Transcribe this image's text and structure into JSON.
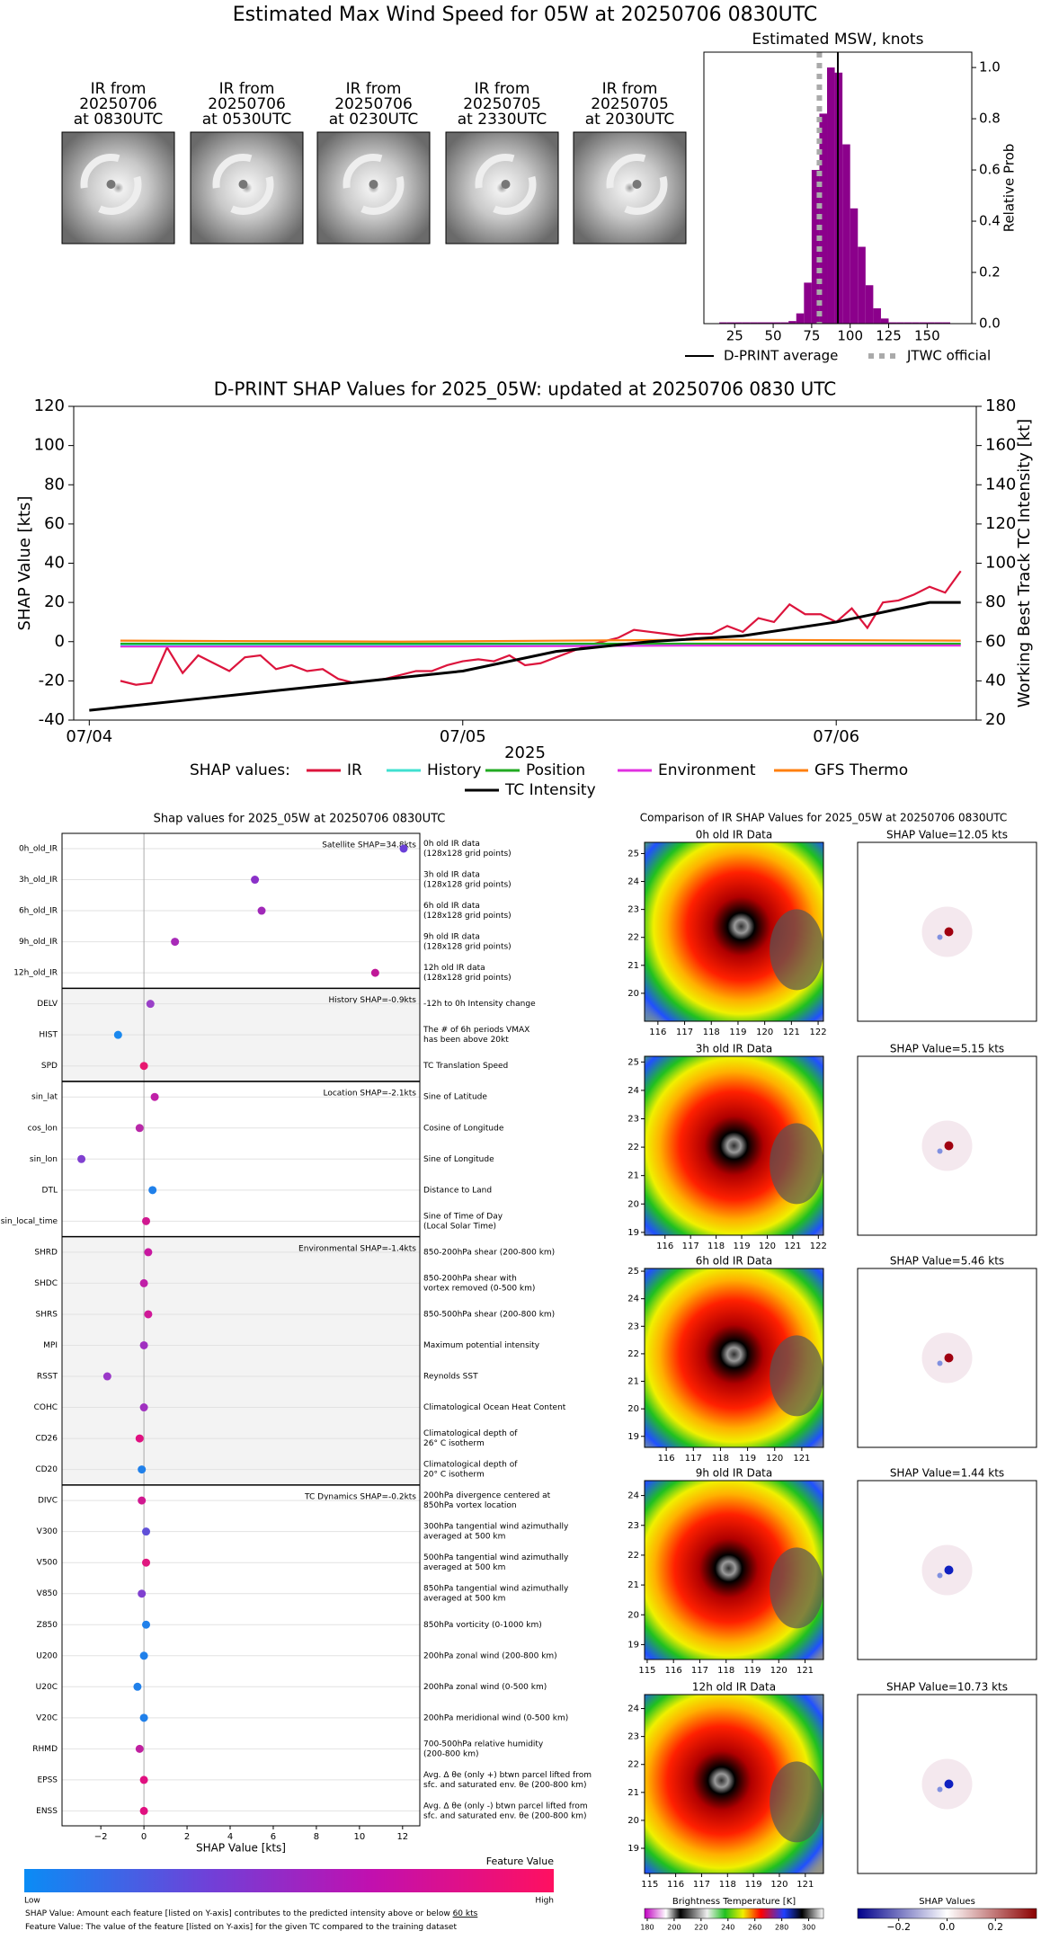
{
  "title": "Estimated Max Wind Speed for 05W at 20250706 0830UTC",
  "thumbnails": [
    {
      "label": [
        "IR from",
        "20250706",
        "at 0830UTC"
      ]
    },
    {
      "label": [
        "IR from",
        "20250706",
        "at 0530UTC"
      ]
    },
    {
      "label": [
        "IR from",
        "20250706",
        "at 0230UTC"
      ]
    },
    {
      "label": [
        "IR from",
        "20250705",
        "at 2330UTC"
      ]
    },
    {
      "label": [
        "IR from",
        "20250705",
        "at 2030UTC"
      ]
    }
  ],
  "chart_data": [
    {
      "type": "histogram",
      "title": "Estimated MSW, knots",
      "color": "#8b008b",
      "bins": [
        15,
        20,
        25,
        30,
        35,
        40,
        45,
        50,
        55,
        60,
        65,
        70,
        75,
        80,
        85,
        90,
        95,
        100,
        105,
        110,
        115,
        120,
        125,
        130,
        135,
        140,
        145,
        150,
        155,
        160,
        165
      ],
      "values": [
        0.005,
        0.005,
        0.005,
        0.005,
        0.005,
        0.005,
        0.005,
        0.005,
        0.005,
        0.01,
        0.04,
        0.16,
        0.6,
        0.82,
        1.0,
        0.98,
        0.7,
        0.45,
        0.3,
        0.15,
        0.06,
        0.02,
        0.005,
        0.005,
        0.005,
        0.005,
        0.005,
        0.005,
        0.005,
        0.005
      ],
      "xlim": [
        5,
        179
      ],
      "xticks": [
        25,
        50,
        75,
        100,
        125,
        150
      ],
      "ylim": [
        0,
        1.06
      ],
      "yticks": [
        {
          "value": 0,
          "label": "0.0"
        },
        0.2,
        0.4,
        0.6,
        0.8,
        {
          "value": 1,
          "label": "1.0"
        }
      ],
      "y_label": "Relative Prob",
      "y_axis_side": "right",
      "lines": [
        {
          "name": "D-PRINT average",
          "value": 92,
          "color": "#000000",
          "style": "solid"
        },
        {
          "name": "JTWC official",
          "value": 80,
          "color": "#aaaaaa",
          "style": "dotted"
        }
      ]
    },
    {
      "type": "line",
      "title": "D-PRINT SHAP Values for 2025_05W: updated at 20250706 0830 UTC",
      "x_label": "2025",
      "y_label": "SHAP Value [kts]",
      "y2_label": "Working Best Track TC Intensity [kt]",
      "xlim": [
        -1,
        57
      ],
      "xticks": [
        {
          "value": 0,
          "label": "07/04"
        },
        {
          "value": 24,
          "label": "07/05"
        },
        {
          "value": 48,
          "label": "07/06"
        }
      ],
      "ylim": [
        -40,
        120
      ],
      "yticks": [
        -40,
        -20,
        0,
        20,
        40,
        60,
        80,
        100,
        120
      ],
      "y2lim": [
        20,
        180
      ],
      "y2ticks": [
        20,
        40,
        60,
        80,
        100,
        120,
        140,
        160,
        180
      ],
      "legend_title": "SHAP values:",
      "series": [
        {
          "name": "IR",
          "color": "#dc143c",
          "x": [
            2,
            3,
            4,
            5,
            6,
            7,
            8,
            9,
            10,
            11,
            12,
            13,
            14,
            15,
            16,
            17,
            18,
            19,
            20,
            21,
            22,
            23,
            24,
            25,
            26,
            27,
            28,
            29,
            30,
            31,
            32,
            33,
            34,
            35,
            36,
            37,
            38,
            39,
            40,
            41,
            42,
            43,
            44,
            45,
            46,
            47,
            48,
            49,
            50,
            51,
            52,
            53,
            54,
            55,
            56
          ],
          "values": [
            -20,
            -22,
            -21,
            -3,
            -16,
            -7,
            -11,
            -15,
            -8,
            -7,
            -14,
            -12,
            -15,
            -14,
            -19,
            -21,
            -20,
            -19,
            -17,
            -15,
            -15,
            -12,
            -10,
            -9,
            -10,
            -7,
            -12,
            -11,
            -8,
            -5,
            -2,
            0,
            2,
            6,
            5,
            4,
            3,
            4,
            4,
            8,
            5,
            12,
            10,
            19,
            14,
            14,
            10,
            17,
            7,
            20,
            21,
            24,
            28,
            25,
            36
          ]
        },
        {
          "name": "History",
          "color": "#40e0d0",
          "x": [
            2,
            20,
            40,
            56
          ],
          "values": [
            -2,
            -2,
            -1.5,
            -1.5
          ]
        },
        {
          "name": "Position",
          "color": "#22aa22",
          "x": [
            2,
            56
          ],
          "values": [
            -1,
            -1
          ]
        },
        {
          "name": "Environment",
          "color": "#e030e0",
          "x": [
            2,
            20,
            40,
            56
          ],
          "values": [
            -2.5,
            -2.5,
            -2,
            -2
          ]
        },
        {
          "name": "GFS Thermo",
          "color": "#ff7f0e",
          "x": [
            2,
            20,
            40,
            56
          ],
          "values": [
            0.5,
            0,
            1,
            0.5
          ]
        },
        {
          "name": "TC Intensity",
          "color": "#000000",
          "axis": "y2",
          "x": [
            0,
            6,
            12,
            18,
            24,
            30,
            36,
            42,
            48,
            54,
            56
          ],
          "values": [
            25,
            30,
            35,
            40,
            45,
            55,
            60,
            63,
            70,
            80,
            80
          ]
        }
      ]
    },
    {
      "type": "dot",
      "title": "Shap values for 2025_05W at 20250706 0830UTC",
      "x_label": "SHAP Value [kts]",
      "xlim": [
        -3.8,
        12.8
      ],
      "xticks": [
        {
          "value": -2,
          "label": "−2"
        },
        0,
        2,
        4,
        6,
        8,
        10,
        12
      ],
      "groups": [
        {
          "label": "Satellite SHAP=34.8kts",
          "features": [
            {
              "name": "0h_old_IR",
              "value": 12.05,
              "color": "#6a3fd8",
              "description": [
                "0h old IR data",
                "(128x128 grid points)"
              ]
            },
            {
              "name": "3h_old_IR",
              "value": 5.15,
              "color": "#8a30c8",
              "description": [
                "3h old IR data",
                "(128x128 grid points)"
              ]
            },
            {
              "name": "6h_old_IR",
              "value": 5.46,
              "color": "#a028b8",
              "description": [
                "6h old IR data",
                "(128x128 grid points)"
              ]
            },
            {
              "name": "9h_old_IR",
              "value": 1.44,
              "color": "#a82ab8",
              "description": [
                "9h old IR data",
                "(128x128 grid points)"
              ]
            },
            {
              "name": "12h_old_IR",
              "value": 10.73,
              "color": "#c01898",
              "description": [
                "12h old IR data",
                "(128x128 grid points)"
              ]
            }
          ]
        },
        {
          "label": "History SHAP=-0.9kts",
          "features": [
            {
              "name": "DELV",
              "value": 0.3,
              "color": "#9a40c8",
              "description": [
                "-12h to 0h Intensity change"
              ]
            },
            {
              "name": "HIST",
              "value": -1.2,
              "color": "#1a88ee",
              "description": [
                "The # of 6h periods VMAX",
                "has been above 20kt"
              ]
            },
            {
              "name": "SPD",
              "value": 0.0,
              "color": "#e81870",
              "description": [
                "TC Translation Speed"
              ]
            }
          ]
        },
        {
          "label": "Location SHAP=-2.1kts",
          "features": [
            {
              "name": "sin_lat",
              "value": 0.5,
              "color": "#c020a8",
              "description": [
                "Sine of Latitude"
              ]
            },
            {
              "name": "cos_lon",
              "value": -0.2,
              "color": "#b828a8",
              "description": [
                "Cosine of Longitude"
              ]
            },
            {
              "name": "sin_lon",
              "value": -2.9,
              "color": "#8040d0",
              "description": [
                "Sine of Longitude"
              ]
            },
            {
              "name": "DTL",
              "value": 0.4,
              "color": "#2080ea",
              "description": [
                "Distance to Land"
              ]
            },
            {
              "name": "sin_local_time",
              "value": 0.1,
              "color": "#d01890",
              "description": [
                "Sine of Time of Day",
                "(Local Solar Time)"
              ]
            }
          ]
        },
        {
          "label": "Environmental SHAP=-1.4kts",
          "features": [
            {
              "name": "SHRD",
              "value": 0.2,
              "color": "#c818a0",
              "description": [
                "850-200hPa shear (200-800 km)"
              ]
            },
            {
              "name": "SHDC",
              "value": 0.0,
              "color": "#c020a8",
              "description": [
                "850-200hPa shear with",
                "vortex removed (0-500 km)"
              ]
            },
            {
              "name": "SHRS",
              "value": 0.2,
              "color": "#d01898",
              "description": [
                "850-500hPa shear (200-800 km)"
              ]
            },
            {
              "name": "MPI",
              "value": 0.0,
              "color": "#a030c0",
              "description": [
                "Maximum potential intensity"
              ]
            },
            {
              "name": "RSST",
              "value": -1.7,
              "color": "#9a38c8",
              "description": [
                "Reynolds SST"
              ]
            },
            {
              "name": "COHC",
              "value": 0.0,
              "color": "#a030c0",
              "description": [
                "Climatological Ocean Heat Content"
              ]
            },
            {
              "name": "CD26",
              "value": -0.2,
              "color": "#e01080",
              "description": [
                "Climatological depth of",
                "26° C isotherm"
              ]
            },
            {
              "name": "CD20",
              "value": -0.1,
              "color": "#2080ea",
              "description": [
                "Climatological depth of",
                "20° C isotherm"
              ]
            }
          ]
        },
        {
          "label": "TC Dynamics SHAP=-0.2kts",
          "features": [
            {
              "name": "DIVC",
              "value": -0.1,
              "color": "#d01890",
              "description": [
                "200hPa divergence centered at",
                "850hPa vortex location"
              ]
            },
            {
              "name": "V300",
              "value": 0.1,
              "color": "#6050d8",
              "description": [
                "300hPa tangential wind azimuthally",
                "averaged at 500 km"
              ]
            },
            {
              "name": "V500",
              "value": 0.1,
              "color": "#e01880",
              "description": [
                "500hPa tangential wind azimuthally",
                "averaged at 500 km"
              ]
            },
            {
              "name": "V850",
              "value": -0.1,
              "color": "#8040d0",
              "description": [
                "850hPa tangential wind azimuthally",
                "averaged at 500 km"
              ]
            },
            {
              "name": "Z850",
              "value": 0.1,
              "color": "#2080ea",
              "description": [
                "850hPa vorticity (0-1000 km)"
              ]
            },
            {
              "name": "U200",
              "value": 0.0,
              "color": "#2080ea",
              "description": [
                "200hPa zonal wind (200-800 km)"
              ]
            },
            {
              "name": "U20C",
              "value": -0.3,
              "color": "#2080ea",
              "description": [
                "200hPa zonal wind (0-500 km)"
              ]
            },
            {
              "name": "V20C",
              "value": 0.0,
              "color": "#2080ea",
              "description": [
                "200hPa meridional wind (0-500 km)"
              ]
            },
            {
              "name": "RHMD",
              "value": -0.2,
              "color": "#c020a0",
              "description": [
                "700-500hPa relative humidity",
                "(200-800 km)"
              ]
            },
            {
              "name": "EPSS",
              "value": 0.0,
              "color": "#e01080",
              "description": [
                "Avg. Δ θe (only +) btwn parcel lifted from",
                "sfc. and saturated env. θe (200-800 km)"
              ]
            },
            {
              "name": "ENSS",
              "value": 0.0,
              "color": "#e01080",
              "description": [
                "Avg. Δ θe (only -) btwn parcel lifted from",
                "sfc. and saturated env. θe (200-800 km)"
              ]
            }
          ]
        }
      ],
      "colorbar": {
        "title": "Feature Value",
        "low": "Low",
        "high": "High"
      },
      "notes": [
        [
          "SHAP Value: Amount each feature [listed on Y-axis] contributes to the predicted intensity above or below ",
          "60 kts"
        ],
        [
          "Feature Value: The value of the feature [listed on Y-axis] for the given TC compared to the training dataset"
        ]
      ]
    }
  ],
  "ir_comparison": {
    "title": "Comparison of IR SHAP Values for 2025_05W at 20250706 0830UTC",
    "panels": [
      {
        "ir_title": "0h old IR Data",
        "shap_title": "SHAP Value=12.05 kts",
        "xlim": [
          115.5,
          122.2
        ],
        "xticks": [
          116,
          117,
          118,
          119,
          120,
          121,
          122
        ],
        "ylim": [
          19.0,
          25.4
        ],
        "yticks": [
          20,
          21,
          22,
          23,
          24,
          25
        ]
      },
      {
        "ir_title": "3h old IR Data",
        "shap_title": "SHAP Value=5.15 kts",
        "xlim": [
          115.2,
          122.2
        ],
        "xticks": [
          116,
          117,
          118,
          119,
          120,
          121,
          122
        ],
        "ylim": [
          18.9,
          25.2
        ],
        "yticks": [
          19,
          20,
          21,
          22,
          23,
          24,
          25
        ]
      },
      {
        "ir_title": "6h old IR Data",
        "shap_title": "SHAP Value=5.46 kts",
        "xlim": [
          115.2,
          121.8
        ],
        "xticks": [
          116,
          117,
          118,
          119,
          120,
          121
        ],
        "ylim": [
          18.6,
          25.1
        ],
        "yticks": [
          19,
          20,
          21,
          22,
          23,
          24,
          25
        ]
      },
      {
        "ir_title": "9h old IR Data",
        "shap_title": "SHAP Value=1.44 kts",
        "xlim": [
          114.9,
          121.7
        ],
        "xticks": [
          115,
          116,
          117,
          118,
          119,
          120,
          121
        ],
        "ylim": [
          18.5,
          24.5
        ],
        "yticks": [
          19,
          20,
          21,
          22,
          23,
          24
        ]
      },
      {
        "ir_title": "12h old IR Data",
        "shap_title": "SHAP Value=10.73 kts",
        "xlim": [
          114.8,
          121.7
        ],
        "xticks": [
          115,
          116,
          117,
          118,
          119,
          120,
          121
        ],
        "ylim": [
          18.1,
          24.5
        ],
        "yticks": [
          19,
          20,
          21,
          22,
          23,
          24
        ]
      }
    ],
    "bt_colorbar": {
      "label": "Brightness Temperature [K]",
      "lim": [
        178,
        311
      ],
      "ticks": [
        180,
        200,
        220,
        240,
        260,
        280,
        300
      ]
    },
    "shap_colorbar": {
      "label": "SHAP Values",
      "lim": [
        -0.37,
        0.37
      ],
      "ticks": [
        {
          "value": -0.2,
          "label": "−0.2"
        },
        {
          "value": 0,
          "label": "0.0"
        },
        0.2
      ]
    }
  }
}
